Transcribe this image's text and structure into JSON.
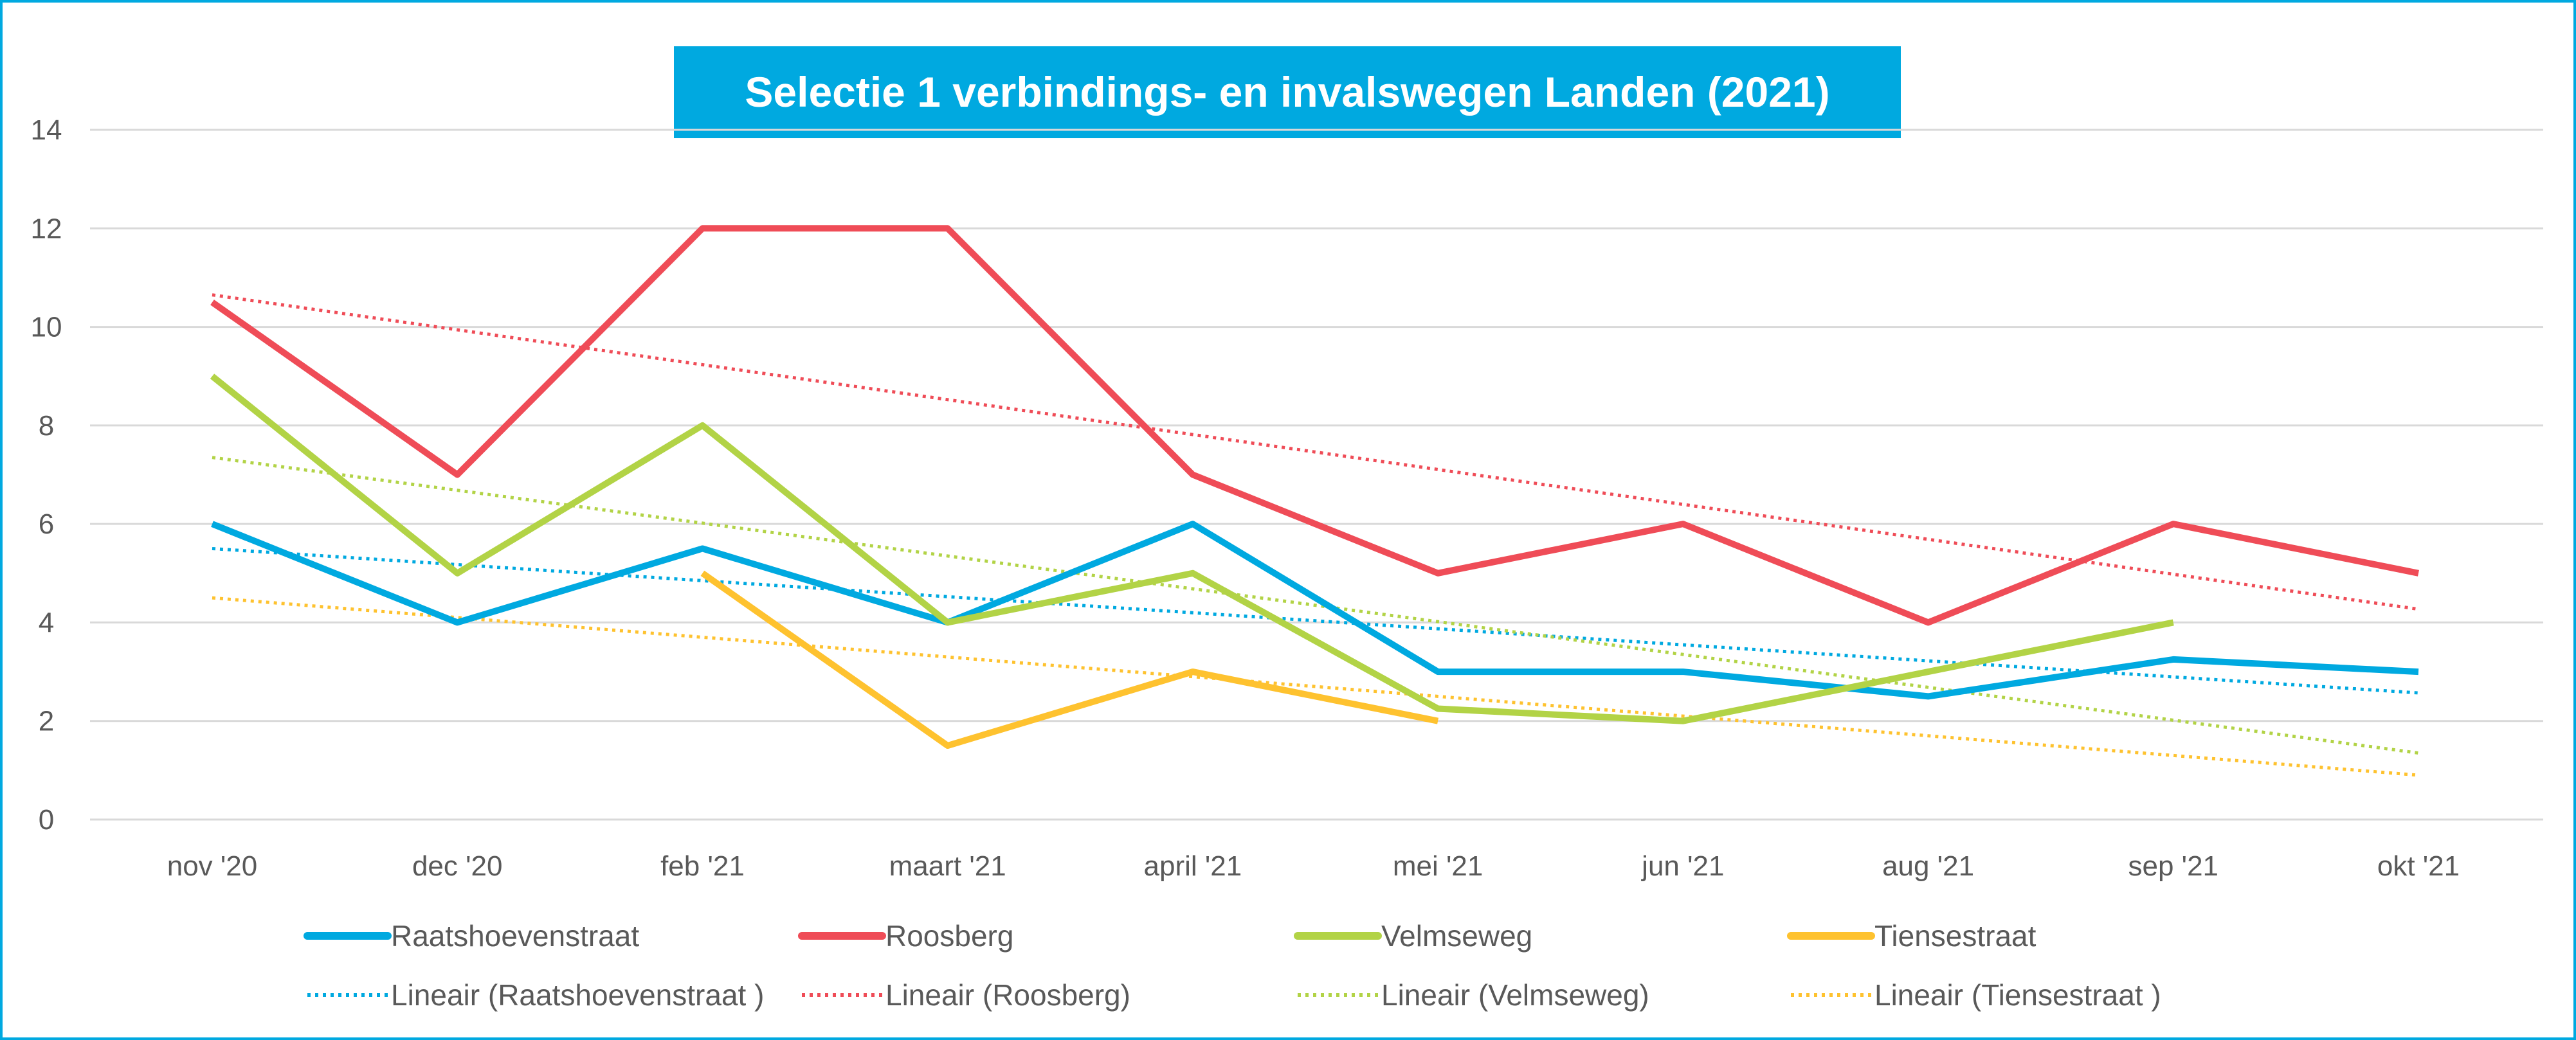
{
  "chart_data": {
    "type": "line",
    "title": "Selectie 1 verbindings- en invalswegen Landen (2021)",
    "title_bg": "#00a9e0",
    "border_color": "#00a9e0",
    "categories": [
      "nov '20",
      "dec '20",
      "feb '21",
      "maart '21",
      "april '21",
      "mei '21",
      "jun '21",
      "aug '21",
      "sep '21",
      "okt '21"
    ],
    "ylim": [
      0,
      14
    ],
    "yticks": [
      "0",
      "2",
      "4",
      "6",
      "8",
      "10",
      "12",
      "14"
    ],
    "grid": true,
    "legend_position": "bottom",
    "series": [
      {
        "name": "Raatshoevenstraat",
        "color": "#00a9e0",
        "values": [
          6,
          4,
          5.5,
          4,
          6,
          3,
          3,
          2.5,
          3.25,
          3
        ]
      },
      {
        "name": "Roosberg",
        "color": "#ef4c57",
        "values": [
          10.5,
          7,
          12,
          12,
          7,
          5,
          6,
          4,
          6,
          5
        ]
      },
      {
        "name": "Velmseweg",
        "color": "#b2d346",
        "values": [
          9,
          5,
          8,
          4,
          5,
          2.25,
          2,
          3,
          4,
          null
        ]
      },
      {
        "name": "Tiensestraat",
        "color": "#fec22f",
        "values": [
          null,
          null,
          5,
          1.5,
          3,
          2,
          null,
          null,
          null,
          null
        ]
      }
    ],
    "trendlines": [
      {
        "name": "Lineair (Raatshoevenstraat )",
        "color": "#00a9e0",
        "type": "linear",
        "start": 5.5,
        "end": 2.57
      },
      {
        "name": "Lineair (Roosberg)",
        "color": "#ef4c57",
        "type": "linear",
        "start": 10.65,
        "end": 4.27
      },
      {
        "name": "Lineair (Velmseweg)",
        "color": "#b2d346",
        "type": "linear",
        "start": 7.35,
        "end": 1.35
      },
      {
        "name": "Lineair (Tiensestraat )",
        "color": "#fec22f",
        "type": "linear",
        "start": 4.5,
        "end": 0.9
      }
    ]
  }
}
